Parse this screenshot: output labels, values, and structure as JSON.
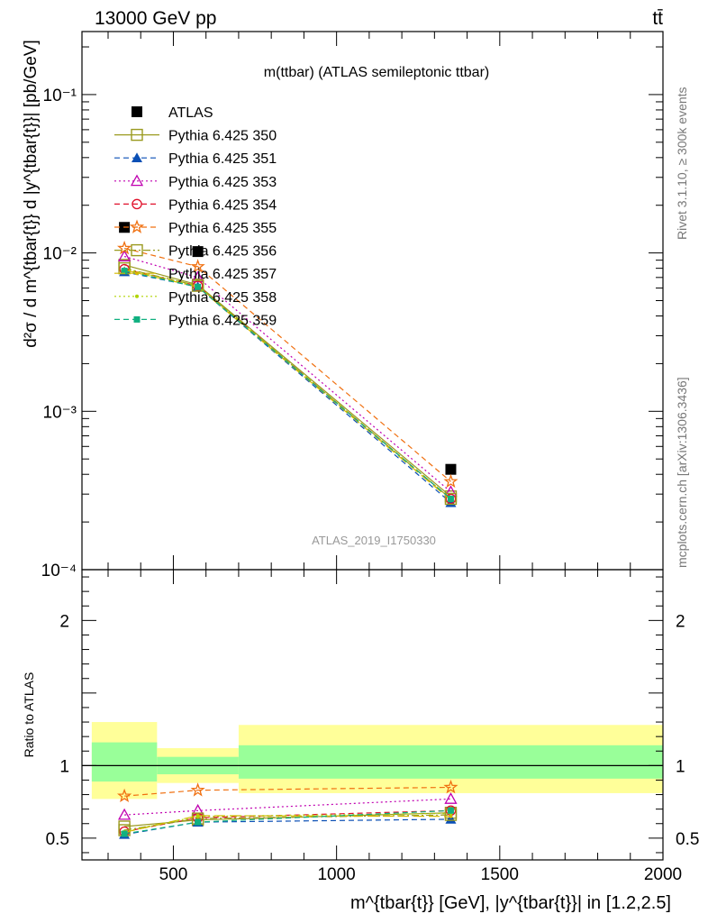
{
  "header": {
    "left": "13000 GeV pp",
    "right": "tt̄"
  },
  "side": {
    "rivet": "Rivet 3.1.10, ≥ 300k events",
    "mcplots": "mcplots.cern.ch [arXiv:1306.3436]"
  },
  "chart_data": [
    {
      "type": "line",
      "title": "m(ttbar) (ATLAS semileptonic ttbar)",
      "watermark": "ATLAS_2019_I1750330",
      "ylabel": "d²σ / d m^{tbar{t}} d |y^{tbar{t}}| [pb/GeV]",
      "yscale": "log",
      "ylim": [
        0.0001,
        0.25
      ],
      "xlim": [
        220,
        2000
      ],
      "yticks": [
        {
          "value": 0.1,
          "label": "10⁻¹"
        },
        {
          "value": 0.01,
          "label": "10⁻²"
        },
        {
          "value": 0.001,
          "label": "10⁻³"
        },
        {
          "value": 0.0001,
          "label": "10⁻⁴"
        }
      ],
      "x": [
        350,
        575,
        1350
      ],
      "legend_position": "top-left",
      "series": [
        {
          "name": "ATLAS",
          "values": [
            0.0145,
            0.0102,
            0.00043
          ],
          "color": "#000000",
          "marker": "filled-square",
          "line": "none"
        },
        {
          "name": "Pythia 6.425 350",
          "values": [
            0.0084,
            0.0063,
            0.00029
          ],
          "color": "#9a9a1f",
          "marker": "open-square",
          "line": "solid"
        },
        {
          "name": "Pythia 6.425 351",
          "values": [
            0.0076,
            0.0061,
            0.000265
          ],
          "color": "#0a4fb5",
          "marker": "filled-triangle",
          "line": "dashed"
        },
        {
          "name": "Pythia 6.425 353",
          "values": [
            0.0095,
            0.007,
            0.00031
          ],
          "color": "#c000b0",
          "marker": "open-triangle",
          "line": "dotted"
        },
        {
          "name": "Pythia 6.425 354",
          "values": [
            0.0079,
            0.0062,
            0.00028
          ],
          "color": "#e0102a",
          "marker": "open-circle",
          "line": "dashed"
        },
        {
          "name": "Pythia 6.425 355",
          "values": [
            0.0107,
            0.0082,
            0.00036
          ],
          "color": "#f07010",
          "marker": "open-star",
          "line": "dashed"
        },
        {
          "name": "Pythia 6.425 356",
          "values": [
            0.008,
            0.0062,
            0.00028
          ],
          "color": "#9a9a1f",
          "marker": "open-square",
          "line": "dashdot"
        },
        {
          "name": "Pythia 6.425 357",
          "values": [
            0.0078,
            0.0061,
            0.000275
          ],
          "color": "#d4b800",
          "marker": "none",
          "line": "longdash"
        },
        {
          "name": "Pythia 6.425 358",
          "values": [
            0.0079,
            0.0062,
            0.00028
          ],
          "color": "#b0d400",
          "marker": "small-dot",
          "line": "dotted"
        },
        {
          "name": "Pythia 6.425 359",
          "values": [
            0.0077,
            0.0061,
            0.00028
          ],
          "color": "#10b080",
          "marker": "filled-square-small",
          "line": "dashed"
        }
      ]
    },
    {
      "type": "line",
      "ylabel": "Ratio to ATLAS",
      "xlabel": "m^{tbar{t}} [GeV], |y^{tbar{t}}| in [1.2,2.5]",
      "ylim": [
        0.35,
        2.35
      ],
      "xlim": [
        220,
        2000
      ],
      "yticks": [
        {
          "value": 0.5,
          "label": "0.5"
        },
        {
          "value": 1,
          "label": "1"
        },
        {
          "value": 2,
          "label": "2"
        }
      ],
      "xticks": [
        {
          "value": 500,
          "label": "500"
        },
        {
          "value": 1000,
          "label": "1000"
        },
        {
          "value": 1500,
          "label": "1500"
        },
        {
          "value": 2000,
          "label": "2000"
        }
      ],
      "bands": [
        {
          "x0": 250,
          "x1": 450,
          "inner": [
            0.89,
            1.16
          ],
          "outer": [
            0.77,
            1.3
          ]
        },
        {
          "x0": 450,
          "x1": 700,
          "inner": [
            0.94,
            1.06
          ],
          "outer": [
            0.88,
            1.12
          ]
        },
        {
          "x0": 700,
          "x1": 2000,
          "inner": [
            0.91,
            1.14
          ],
          "outer": [
            0.81,
            1.28
          ]
        }
      ],
      "x": [
        350,
        575,
        1350
      ],
      "series": [
        {
          "name": "Pythia 6.425 350",
          "values": [
            0.58,
            0.625,
            0.675
          ]
        },
        {
          "name": "Pythia 6.425 351",
          "values": [
            0.525,
            0.61,
            0.63
          ]
        },
        {
          "name": "Pythia 6.425 353",
          "values": [
            0.66,
            0.69,
            0.77
          ]
        },
        {
          "name": "Pythia 6.425 354",
          "values": [
            0.545,
            0.64,
            0.69
          ]
        },
        {
          "name": "Pythia 6.425 355",
          "values": [
            0.79,
            0.83,
            0.85
          ]
        },
        {
          "name": "Pythia 6.425 356",
          "values": [
            0.555,
            0.635,
            0.66
          ]
        },
        {
          "name": "Pythia 6.425 357",
          "values": [
            0.54,
            0.655,
            0.65
          ]
        },
        {
          "name": "Pythia 6.425 358",
          "values": [
            0.545,
            0.65,
            0.67
          ]
        },
        {
          "name": "Pythia 6.425 359",
          "values": [
            0.53,
            0.61,
            0.69
          ]
        }
      ]
    }
  ]
}
